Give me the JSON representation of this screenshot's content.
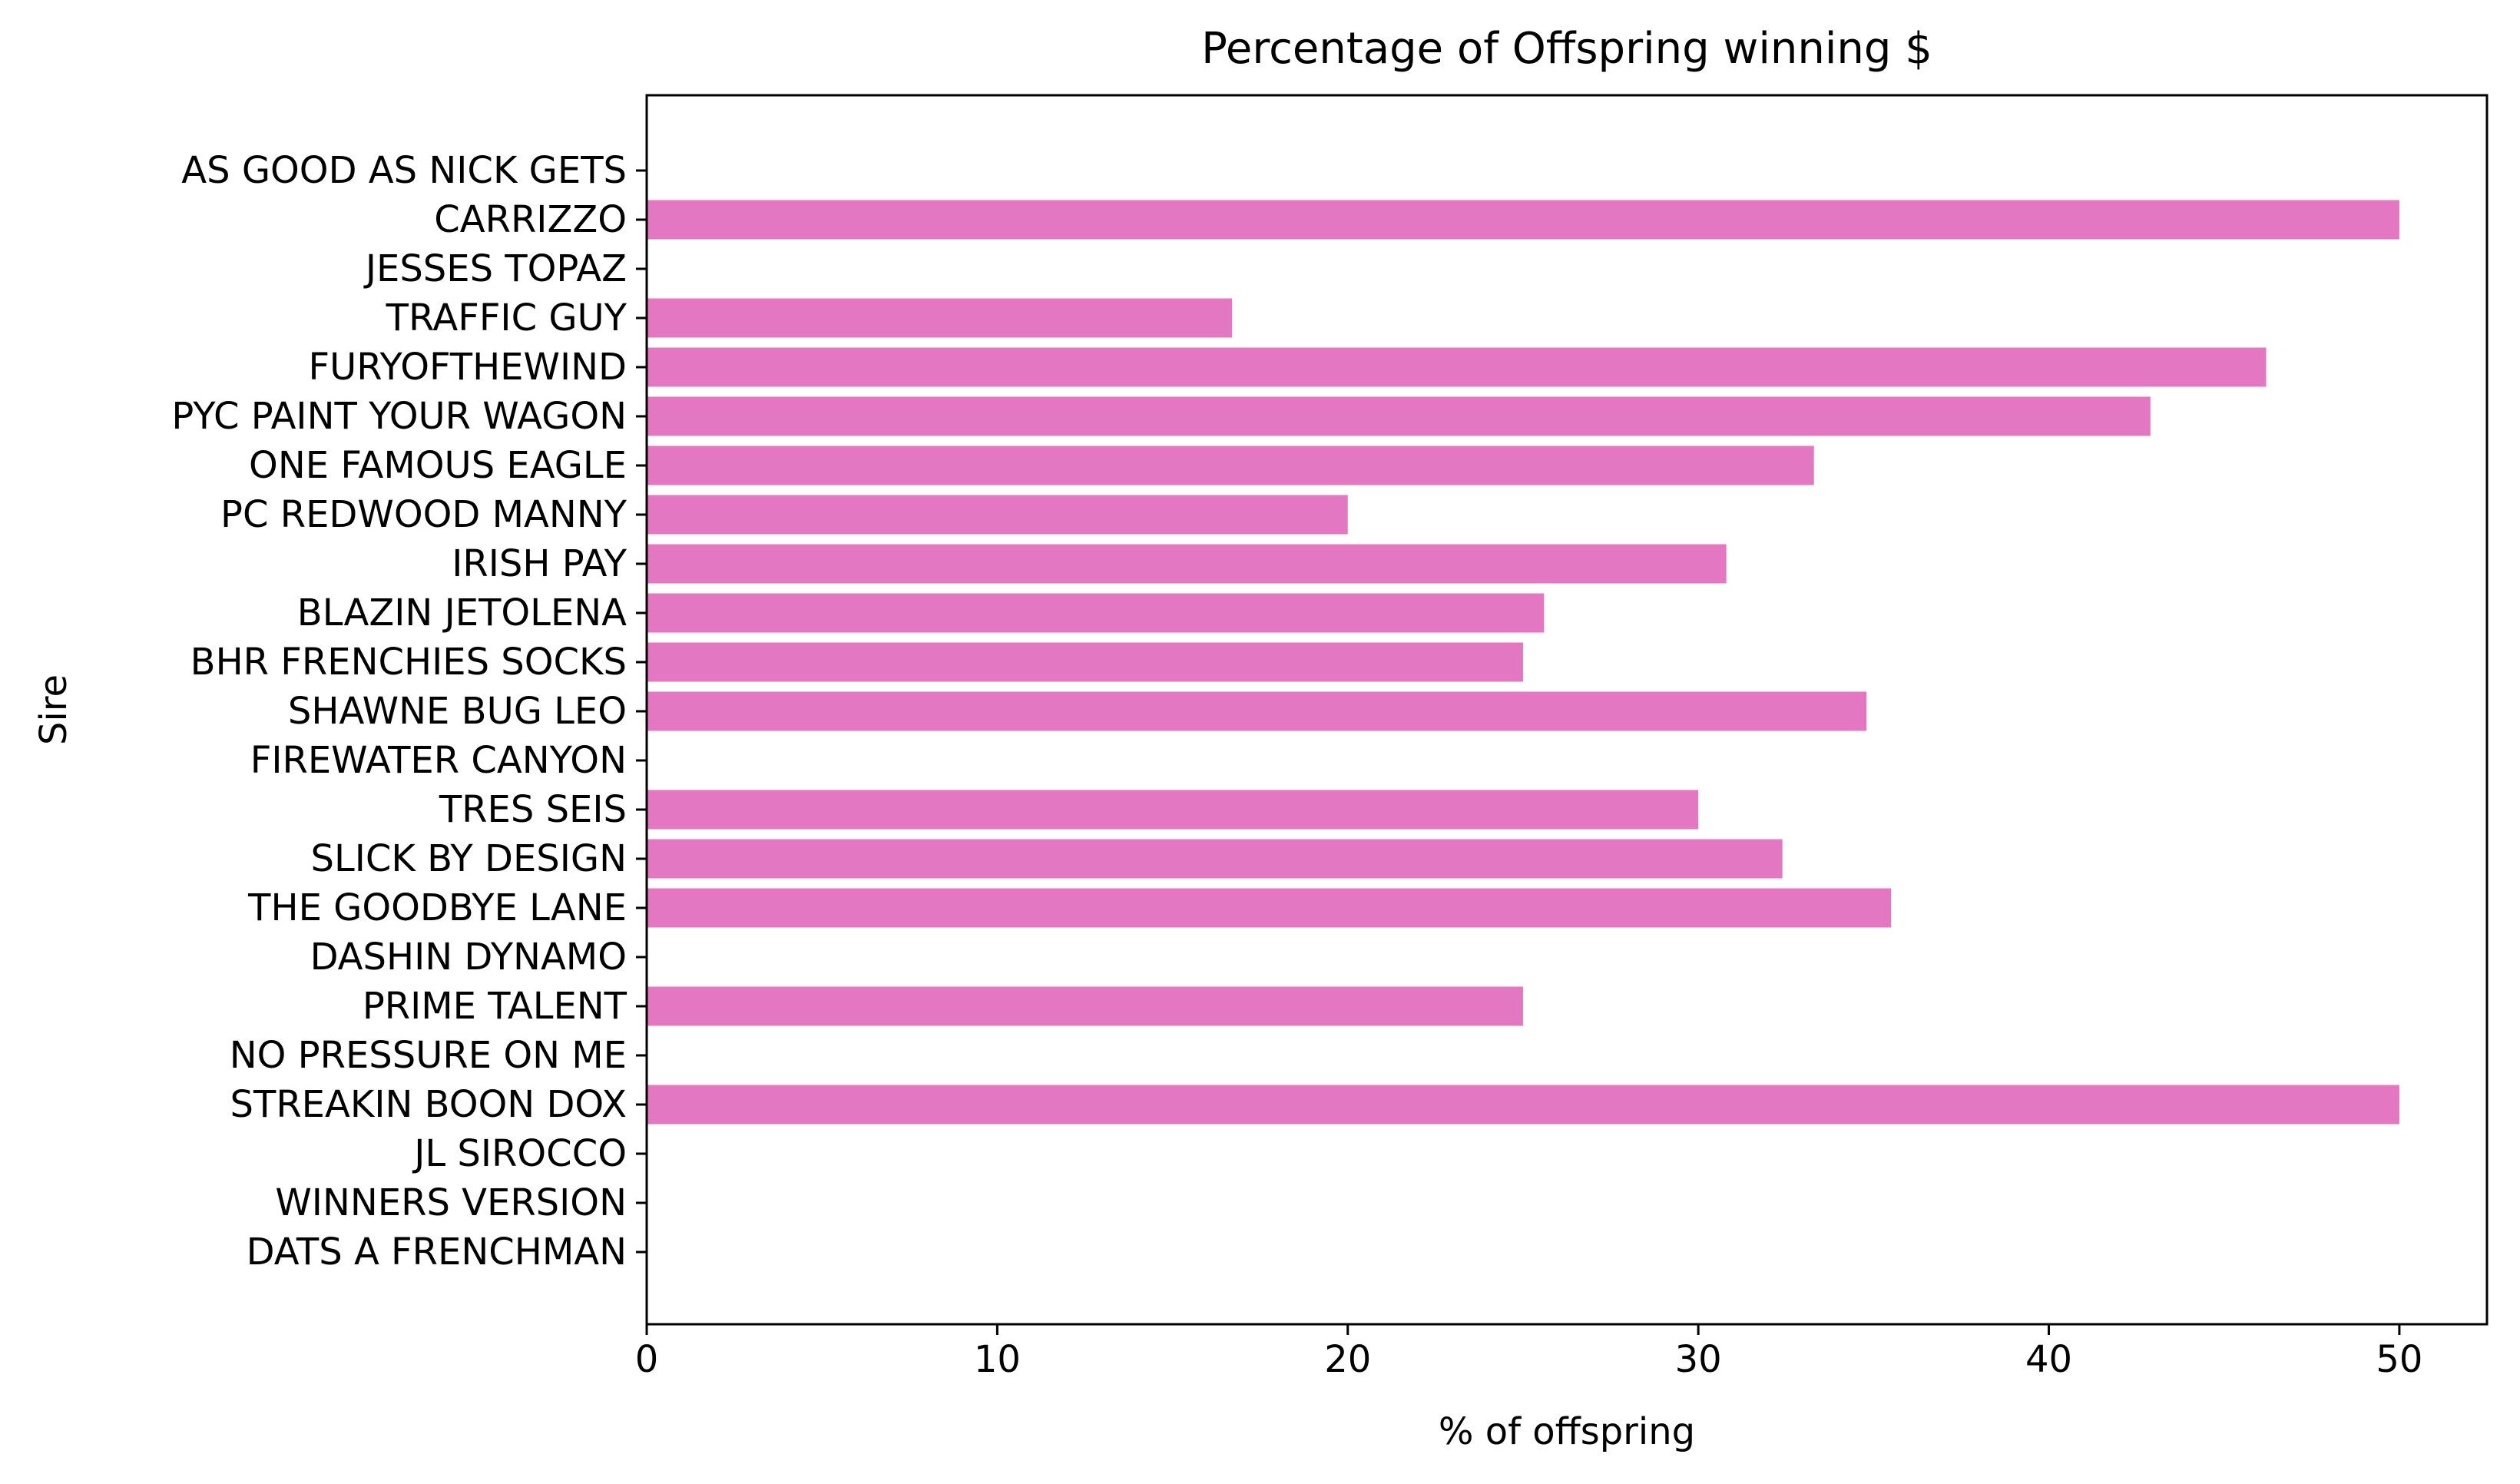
{
  "chart_data": {
    "type": "bar",
    "orientation": "horizontal",
    "title": "Percentage of Offspring winning $",
    "xlabel": "% of offspring",
    "ylabel": "Sire",
    "xlim": [
      0,
      52.5
    ],
    "xticks": [
      0,
      10,
      20,
      30,
      40,
      50
    ],
    "grid": false,
    "bar_color": "#e377c2",
    "categories": [
      "AS GOOD AS NICK GETS",
      "CARRIZZO",
      "JESSES TOPAZ",
      "TRAFFIC GUY",
      "FURYOFTHEWIND",
      "PYC PAINT YOUR WAGON",
      "ONE FAMOUS EAGLE",
      "PC REDWOOD MANNY",
      "IRISH PAY",
      "BLAZIN JETOLENA",
      "BHR FRENCHIES SOCKS",
      "SHAWNE BUG LEO",
      "FIREWATER CANYON",
      "TRES SEIS",
      "SLICK BY DESIGN",
      "THE GOODBYE LANE",
      "DASHIN DYNAMO",
      "PRIME TALENT",
      "NO PRESSURE ON ME",
      "STREAKIN BOON DOX",
      "JL SIROCCO",
      "WINNERS VERSION",
      "DATS A FRENCHMAN"
    ],
    "values": [
      0,
      50,
      0,
      16.7,
      46.2,
      42.9,
      33.3,
      20,
      30.8,
      25.6,
      25,
      34.8,
      0,
      30,
      32.4,
      35.5,
      0,
      25,
      0,
      50,
      0,
      0,
      0
    ]
  }
}
